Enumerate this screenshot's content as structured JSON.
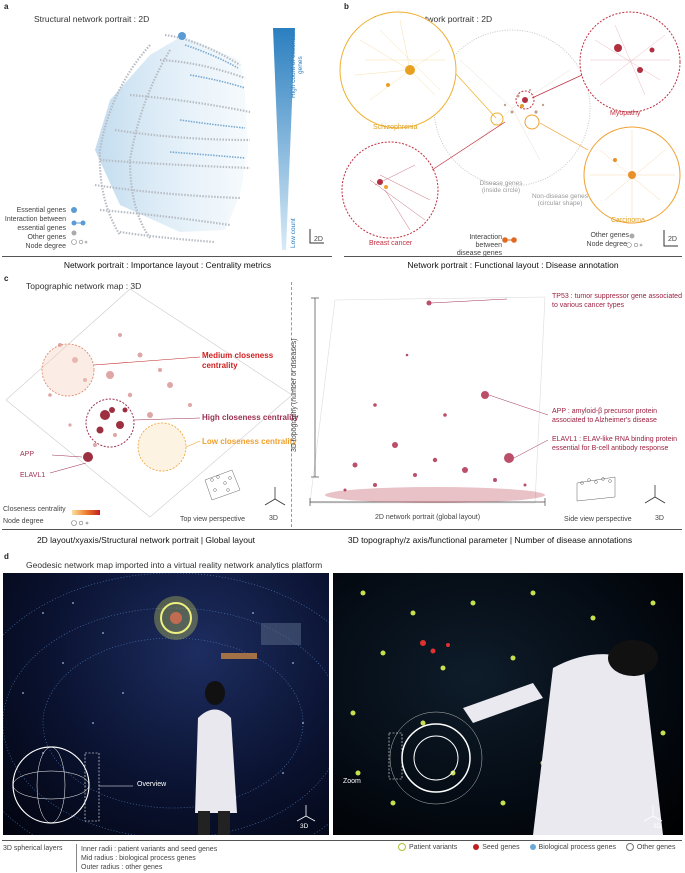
{
  "panel_a": {
    "letter": "a",
    "title": "Structural network portrait : 2D",
    "gradient_top": "High count of essential genes",
    "gradient_bottom": "Low count",
    "legend": [
      "Essential genes",
      "Interaction between essential genes",
      "Other genes",
      "Node degree"
    ],
    "axis_label": "2D",
    "caption": "Network portrait : Importance layout : Centrality metrics"
  },
  "panel_b": {
    "letter": "b",
    "title": "Functional network portrait : 2D",
    "schizophrenia": "Schizophrenia",
    "myopathy": "Myopathy",
    "carcinoma": "Carcinoma",
    "breast_cancer": "Breast cancer",
    "disease_genes": "Disease genes (inside circle)",
    "non_disease_genes": "Non-disease genes (circular shape)",
    "interaction": "Interaction between disease genes",
    "other_genes": "Other genes",
    "node_degree": "Node degree",
    "axis_label": "2D",
    "caption": "Network portrait : Functional layout : Disease annotation"
  },
  "panel_c": {
    "letter": "c",
    "title": "Topographic network map : 3D",
    "medium": "Medium closeness centrality",
    "high": "High closeness centrality",
    "low": "Low closeness centrality",
    "app": "APP",
    "elavl1": "ELAVL1",
    "closeness": "Closeness centrality",
    "node_degree": "Node degree",
    "top_view": "Top view perspective",
    "axis_label_left": "3D",
    "caption_left": "2D layout/xyaxis/Structural network portrait | Global layout",
    "z_axis": "3D topography (number of diseases)",
    "tp53": "TP53 : tumor suppressor gene associated to various cancer types",
    "app_desc": "APP : amyloid-β precursor protein associated to Alzheimer's disease",
    "elavl1_desc": "ELAVL1 : ELAV-like RNA binding protein essential for B-cell antibody response",
    "x_axis": "2D network portrait (global layout)",
    "side_view": "Side view perspective",
    "axis_label_right": "3D",
    "caption_right": "3D topography/z axis/functional parameter | Number of disease annotations"
  },
  "panel_d": {
    "letter": "d",
    "title": "Geodesic network map imported into a virtual reality network analytics platform",
    "overview": "Overview",
    "zoom": "Zoom",
    "axis_label": "3D",
    "layers_title": "3D spherical layers",
    "layers": [
      "Inner radii : patient variants and seed genes",
      "Mid radius : biological process genes",
      "Outer radius : other genes"
    ],
    "legend": [
      "Patient variants",
      "Seed genes",
      "Biological process genes",
      "Other genes"
    ]
  },
  "colors": {
    "essential": "#5b9bd5",
    "disease_red": "#b03040",
    "orange": "#f0a030",
    "patient": "#c8d848",
    "seed": "#c02020",
    "bio": "#6aa8d8"
  }
}
